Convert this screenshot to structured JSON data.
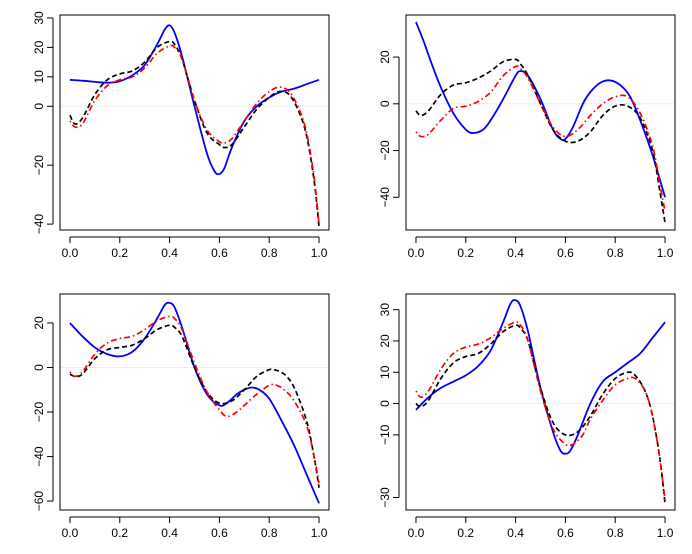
{
  "chart_data": [
    {
      "type": "line",
      "x_ticks": [
        0.0,
        0.2,
        0.4,
        0.6,
        0.8,
        1.0
      ],
      "x_tick_labels": [
        "0.0",
        "0.2",
        "0.4",
        "0.6",
        "0.8",
        "1.0"
      ],
      "y_ticks": [
        -40,
        -20,
        0,
        10,
        20,
        30
      ],
      "y_tick_labels": [
        "−40",
        "−20",
        "0",
        "10",
        "20",
        "30"
      ],
      "xlim": [
        -0.04,
        1.04
      ],
      "ylim": [
        -42,
        31
      ],
      "series": [
        {
          "style": "solid",
          "color": "#0000ff",
          "x": [
            0.0,
            0.05,
            0.1,
            0.15,
            0.2,
            0.25,
            0.3,
            0.35,
            0.38,
            0.4,
            0.42,
            0.45,
            0.5,
            0.55,
            0.58,
            0.6,
            0.62,
            0.65,
            0.7,
            0.75,
            0.8,
            0.85,
            0.9,
            0.95,
            1.0
          ],
          "y": [
            9,
            8.7,
            8.3,
            8,
            8.5,
            10.5,
            14,
            21,
            26,
            27.5,
            25,
            17,
            0,
            -16,
            -22,
            -23,
            -21,
            -14,
            -5,
            0,
            3,
            5,
            6,
            7.5,
            9
          ]
        },
        {
          "style": "dashed",
          "color": "#000000",
          "x": [
            0.0,
            0.02,
            0.05,
            0.1,
            0.15,
            0.2,
            0.25,
            0.3,
            0.35,
            0.4,
            0.42,
            0.45,
            0.5,
            0.55,
            0.6,
            0.62,
            0.65,
            0.7,
            0.75,
            0.8,
            0.84,
            0.88,
            0.92,
            0.95,
            0.98,
            1.0
          ],
          "y": [
            -3,
            -6,
            -4,
            4,
            9,
            11,
            12,
            15,
            20,
            22,
            21,
            16,
            2,
            -9,
            -13,
            -14,
            -13,
            -7,
            -1,
            3,
            5,
            4,
            -2,
            -10,
            -25,
            -41
          ]
        },
        {
          "style": "dotdash",
          "color": "#ff0000",
          "x": [
            0.0,
            0.02,
            0.05,
            0.1,
            0.15,
            0.2,
            0.25,
            0.3,
            0.35,
            0.4,
            0.42,
            0.45,
            0.5,
            0.55,
            0.6,
            0.62,
            0.65,
            0.7,
            0.75,
            0.8,
            0.84,
            0.88,
            0.92,
            0.95,
            0.98,
            1.0
          ],
          "y": [
            -5,
            -7,
            -6,
            2,
            7,
            9,
            10,
            13,
            18,
            20.5,
            20,
            16,
            2,
            -8,
            -12,
            -12.5,
            -11,
            -5,
            1,
            5,
            6.5,
            5,
            -1,
            -9,
            -24,
            -40
          ]
        }
      ]
    },
    {
      "type": "line",
      "x_ticks": [
        0.0,
        0.2,
        0.4,
        0.6,
        0.8,
        1.0
      ],
      "x_tick_labels": [
        "0.0",
        "0.2",
        "0.4",
        "0.6",
        "0.8",
        "1.0"
      ],
      "y_ticks": [
        -40,
        -20,
        0,
        20
      ],
      "y_tick_labels": [
        "−40",
        "−20",
        "0",
        "20"
      ],
      "xlim": [
        -0.04,
        1.04
      ],
      "ylim": [
        -54,
        38
      ],
      "series": [
        {
          "style": "solid",
          "color": "#0000ff",
          "x": [
            0.0,
            0.03,
            0.06,
            0.1,
            0.15,
            0.2,
            0.23,
            0.27,
            0.3,
            0.35,
            0.4,
            0.42,
            0.45,
            0.5,
            0.55,
            0.58,
            0.6,
            0.63,
            0.67,
            0.7,
            0.74,
            0.78,
            0.82,
            0.86,
            0.9,
            0.95,
            1.0
          ],
          "y": [
            35,
            27,
            18,
            7,
            -4,
            -11,
            -12.5,
            -11,
            -7,
            2,
            12,
            14,
            12,
            2,
            -11,
            -15,
            -15,
            -10,
            0,
            5,
            9,
            10,
            8,
            3,
            -7,
            -22,
            -40
          ]
        },
        {
          "style": "dashed",
          "color": "#000000",
          "x": [
            0.0,
            0.02,
            0.05,
            0.1,
            0.15,
            0.2,
            0.25,
            0.3,
            0.35,
            0.4,
            0.42,
            0.45,
            0.5,
            0.55,
            0.6,
            0.65,
            0.7,
            0.75,
            0.8,
            0.85,
            0.9,
            0.95,
            0.98,
            1.0
          ],
          "y": [
            -3,
            -5,
            -3,
            4,
            8,
            9,
            11,
            14,
            18,
            19,
            17,
            12,
            0,
            -11,
            -16,
            -16,
            -12,
            -5,
            -1,
            -1,
            -6,
            -20,
            -38,
            -51
          ]
        },
        {
          "style": "dotdash",
          "color": "#ff0000",
          "x": [
            0.0,
            0.02,
            0.05,
            0.1,
            0.15,
            0.2,
            0.25,
            0.3,
            0.35,
            0.4,
            0.42,
            0.45,
            0.5,
            0.55,
            0.6,
            0.65,
            0.7,
            0.75,
            0.8,
            0.85,
            0.9,
            0.95,
            0.98,
            1.0
          ],
          "y": [
            -12,
            -14,
            -13,
            -7,
            -2,
            -1,
            1,
            5,
            12,
            16,
            15,
            11,
            0,
            -10,
            -14,
            -11,
            -5,
            0,
            3,
            3,
            -4,
            -18,
            -35,
            -46
          ]
        }
      ]
    },
    {
      "type": "line",
      "x_ticks": [
        0.0,
        0.2,
        0.4,
        0.6,
        0.8,
        1.0
      ],
      "x_tick_labels": [
        "0.0",
        "0.2",
        "0.4",
        "0.6",
        "0.8",
        "1.0"
      ],
      "y_ticks": [
        -60,
        -40,
        -20,
        0,
        20
      ],
      "y_tick_labels": [
        "−60",
        "−40",
        "−20",
        "0",
        "20"
      ],
      "xlim": [
        -0.04,
        1.04
      ],
      "ylim": [
        -64,
        33
      ],
      "series": [
        {
          "style": "solid",
          "color": "#0000ff",
          "x": [
            0.0,
            0.05,
            0.1,
            0.15,
            0.2,
            0.25,
            0.3,
            0.35,
            0.38,
            0.4,
            0.42,
            0.45,
            0.5,
            0.55,
            0.6,
            0.63,
            0.67,
            0.7,
            0.73,
            0.76,
            0.8,
            0.85,
            0.9,
            0.95,
            1.0
          ],
          "y": [
            20,
            14,
            9,
            6,
            5,
            7,
            13,
            22,
            28,
            29,
            27,
            18,
            0,
            -12,
            -17,
            -16,
            -12,
            -10,
            -9,
            -10,
            -14,
            -24,
            -35,
            -48,
            -61
          ]
        },
        {
          "style": "dashed",
          "color": "#000000",
          "x": [
            0.0,
            0.02,
            0.05,
            0.1,
            0.15,
            0.2,
            0.25,
            0.3,
            0.35,
            0.4,
            0.42,
            0.45,
            0.5,
            0.55,
            0.6,
            0.65,
            0.7,
            0.75,
            0.8,
            0.82,
            0.86,
            0.9,
            0.95,
            0.98,
            1.0
          ],
          "y": [
            -3,
            -4,
            -3,
            4,
            8,
            9,
            10,
            13,
            17,
            19,
            18,
            14,
            0,
            -11,
            -16,
            -15,
            -10,
            -4,
            -1,
            -1,
            -3,
            -9,
            -24,
            -40,
            -54
          ]
        },
        {
          "style": "dotdash",
          "color": "#ff0000",
          "x": [
            0.0,
            0.02,
            0.05,
            0.1,
            0.15,
            0.2,
            0.25,
            0.3,
            0.35,
            0.4,
            0.42,
            0.45,
            0.5,
            0.55,
            0.6,
            0.63,
            0.67,
            0.7,
            0.75,
            0.8,
            0.83,
            0.86,
            0.9,
            0.95,
            0.98,
            1.0
          ],
          "y": [
            -2,
            -4,
            -2,
            6,
            11,
            13,
            14,
            17,
            21,
            23,
            22,
            17,
            2,
            -11,
            -19,
            -22,
            -20,
            -17,
            -12,
            -8,
            -8,
            -10,
            -15,
            -26,
            -40,
            -52
          ]
        }
      ]
    },
    {
      "type": "line",
      "x_ticks": [
        0.0,
        0.2,
        0.4,
        0.6,
        0.8,
        1.0
      ],
      "x_tick_labels": [
        "0.0",
        "0.2",
        "0.4",
        "0.6",
        "0.8",
        "1.0"
      ],
      "y_ticks": [
        -30,
        -10,
        0,
        10,
        20,
        30
      ],
      "y_tick_labels": [
        "−30",
        "−10",
        "0",
        "10",
        "20",
        "30"
      ],
      "xlim": [
        -0.04,
        1.04
      ],
      "ylim": [
        -34,
        35
      ],
      "series": [
        {
          "style": "solid",
          "color": "#0000ff",
          "x": [
            0.0,
            0.05,
            0.1,
            0.15,
            0.2,
            0.25,
            0.3,
            0.35,
            0.38,
            0.4,
            0.42,
            0.45,
            0.5,
            0.55,
            0.58,
            0.6,
            0.62,
            0.65,
            0.7,
            0.75,
            0.8,
            0.85,
            0.9,
            0.95,
            1.0
          ],
          "y": [
            -2,
            2,
            5,
            7,
            9,
            12,
            17,
            26,
            32,
            33,
            31,
            23,
            5,
            -9,
            -15,
            -16,
            -15,
            -10,
            0,
            7,
            10,
            13,
            16,
            21,
            26
          ]
        },
        {
          "style": "dashed",
          "color": "#000000",
          "x": [
            0.0,
            0.02,
            0.05,
            0.1,
            0.15,
            0.2,
            0.25,
            0.3,
            0.35,
            0.4,
            0.42,
            0.45,
            0.5,
            0.55,
            0.6,
            0.65,
            0.7,
            0.75,
            0.8,
            0.85,
            0.88,
            0.92,
            0.95,
            0.98,
            1.0
          ],
          "y": [
            0,
            -1,
            1,
            8,
            13,
            15,
            16,
            19,
            23,
            25,
            24,
            20,
            5,
            -6,
            -10,
            -9,
            -4,
            3,
            8,
            10,
            9,
            4,
            -4,
            -18,
            -32
          ]
        },
        {
          "style": "dotdash",
          "color": "#ff0000",
          "x": [
            0.0,
            0.02,
            0.05,
            0.1,
            0.15,
            0.2,
            0.25,
            0.3,
            0.35,
            0.4,
            0.42,
            0.45,
            0.5,
            0.55,
            0.6,
            0.63,
            0.67,
            0.7,
            0.75,
            0.8,
            0.85,
            0.88,
            0.92,
            0.95,
            0.98,
            1.0
          ],
          "y": [
            4,
            2,
            4,
            11,
            16,
            18,
            19,
            21,
            24,
            26,
            25,
            20,
            4,
            -8,
            -13,
            -13,
            -10,
            -5,
            1,
            6,
            8,
            8,
            4,
            -4,
            -18,
            -31
          ]
        }
      ]
    }
  ]
}
